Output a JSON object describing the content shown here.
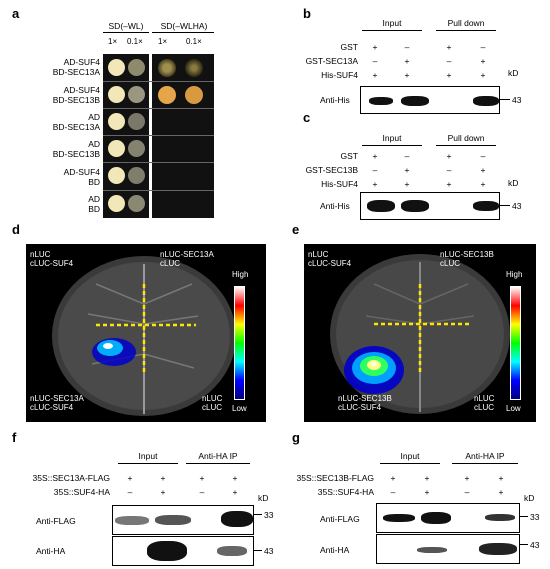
{
  "panel_a": {
    "letter": "a",
    "col_headers": [
      "SD(–WL)",
      "SD(–WLHA)"
    ],
    "dilutions": [
      "1×",
      "0.1×",
      "1×",
      "0.1×"
    ],
    "rows": [
      {
        "line1": "AD-SUF4",
        "line2": "BD-SEC13A"
      },
      {
        "line1": "AD-SUF4",
        "line2": "BD-SEC13B"
      },
      {
        "line1": "AD",
        "line2": "BD-SEC13A"
      },
      {
        "line1": "AD",
        "line2": "BD-SEC13B"
      },
      {
        "line1": "AD-SUF4",
        "line2": "BD"
      },
      {
        "line1": "AD",
        "line2": "BD"
      }
    ]
  },
  "panel_b": {
    "letter": "b",
    "input_label": "Input",
    "pulldown_label": "Pull down",
    "row_labels": [
      "GST",
      "GST-SEC13A",
      "His-SUF4"
    ],
    "signs": [
      [
        "+",
        "–",
        "+",
        "–"
      ],
      [
        "–",
        "+",
        "–",
        "+"
      ],
      [
        "+",
        "+",
        "+",
        "+"
      ]
    ],
    "kd": "kD",
    "blot_label": "Anti-His",
    "marker": "43"
  },
  "panel_c": {
    "letter": "c",
    "input_label": "Input",
    "pulldown_label": "Pull down",
    "row_labels": [
      "GST",
      "GST-SEC13B",
      "His-SUF4"
    ],
    "signs": [
      [
        "+",
        "–",
        "+",
        "–"
      ],
      [
        "–",
        "+",
        "–",
        "+"
      ],
      [
        "+",
        "+",
        "+",
        "+"
      ]
    ],
    "kd": "kD",
    "blot_label": "Anti-His",
    "marker": "43"
  },
  "panel_d": {
    "letter": "d",
    "tl": [
      "nLUC",
      "cLUC-SUF4"
    ],
    "tr": [
      "nLUC-SEC13A",
      "cLUC"
    ],
    "bl": [
      "nLUC-SEC13A",
      "cLUC-SUF4"
    ],
    "br": [
      "nLUC",
      "cLUC"
    ],
    "high": "High",
    "low": "Low"
  },
  "panel_e": {
    "letter": "e",
    "tl": [
      "nLUC",
      "cLUC-SUF4"
    ],
    "tr": [
      "nLUC-SEC13B",
      "cLUC"
    ],
    "bl": [
      "nLUC-SEC13B",
      "cLUC-SUF4"
    ],
    "br": [
      "nLUC",
      "cLUC"
    ],
    "high": "High",
    "low": "Low"
  },
  "panel_f": {
    "letter": "f",
    "input_label": "Input",
    "ip_label": "Anti-HA IP",
    "row_labels": [
      "35S::SEC13A-FLAG",
      "35S::SUF4-HA"
    ],
    "signs": [
      [
        "+",
        "+",
        "+",
        "+"
      ],
      [
        "–",
        "+",
        "–",
        "+"
      ]
    ],
    "kd": "kD",
    "blots": [
      {
        "label": "Anti-FLAG",
        "marker": "33"
      },
      {
        "label": "Anti-HA",
        "marker": "43"
      }
    ]
  },
  "panel_g": {
    "letter": "g",
    "input_label": "Input",
    "ip_label": "Anti-HA IP",
    "row_labels": [
      "35S::SEC13B-FLAG",
      "35S::SUF4-HA"
    ],
    "signs": [
      [
        "+",
        "+",
        "+",
        "+"
      ],
      [
        "–",
        "+",
        "–",
        "+"
      ]
    ],
    "kd": "kD",
    "blots": [
      {
        "label": "Anti-FLAG",
        "marker": "33"
      },
      {
        "label": "Anti-HA",
        "marker": "43"
      }
    ]
  }
}
